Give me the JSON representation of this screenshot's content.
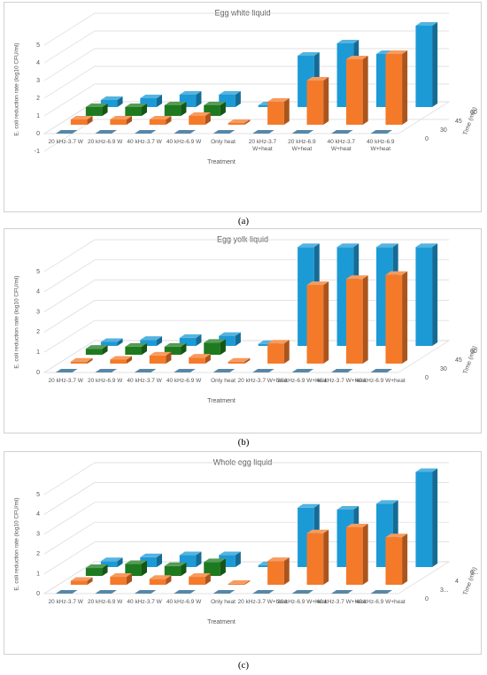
{
  "chart_data": [
    {
      "type": "bar3d",
      "title": "Egg white liquid",
      "panel_label": "(a)",
      "y_label": "E. coli reduction rate (log10 CFU/ml)",
      "x_label": "Treatment",
      "z_label": "Time (min)",
      "categories": [
        "20 kHz-3.7 W",
        "20 kHz-6.9 W",
        "40 kHz-3.7 W",
        "40 kHz-6.9 W",
        "Only heat",
        "20 kHz-3.7 W+heat",
        "20 kHz-6.9 W+heat",
        "40 kHz-3.7 W+heat",
        "40 kHz-6.9 W+heat"
      ],
      "series": [
        {
          "name": "0",
          "color": "#1f5f8b",
          "values": [
            0,
            0,
            0,
            0,
            0,
            0,
            0,
            0,
            0
          ]
        },
        {
          "name": "30",
          "color": "#f47a2a",
          "values": [
            0.3,
            0.3,
            0.3,
            0.5,
            0.1,
            1.3,
            2.5,
            3.7,
            4.0
          ]
        },
        {
          "name": "45",
          "color": "#1e7a1e",
          "values": [
            0.5,
            0.5,
            0.6,
            0.6,
            null,
            null,
            null,
            null,
            null
          ]
        },
        {
          "name": "60",
          "color": "#1c9ad6",
          "values": [
            0.4,
            0.5,
            0.7,
            0.7,
            0.1,
            2.9,
            3.6,
            3.0,
            4.6
          ]
        }
      ],
      "ylim": [
        -1,
        5
      ],
      "yticks": [
        -1,
        0,
        1,
        2,
        3,
        4,
        5
      ],
      "grid": true
    },
    {
      "type": "bar3d",
      "title": "Egg yolk liquid",
      "panel_label": "(b)",
      "y_label": "E. coli reduction rate (log10 CFU/ml)",
      "x_label": "Treatment",
      "z_label": "Time (min)",
      "categories": [
        "20 kHz-3.7 W",
        "20 kHz-6.9 W",
        "40 kHz-3.7 W",
        "40 kHz-6.9 W",
        "Only heat",
        "20 kHz-3.7 W+heat",
        "20 kHz-6.9 W+heat",
        "40 kHz-3.7 W+heat",
        "40 kHz-6.9 W+heat"
      ],
      "series": [
        {
          "name": "0",
          "color": "#1f5f8b",
          "values": [
            0,
            0,
            0,
            0,
            0,
            0,
            0,
            0,
            0
          ]
        },
        {
          "name": "30",
          "color": "#f47a2a",
          "values": [
            0.1,
            0.2,
            0.4,
            0.3,
            0.1,
            1.0,
            3.9,
            4.2,
            4.4
          ]
        },
        {
          "name": "45",
          "color": "#1e7a1e",
          "values": [
            0.3,
            0.4,
            0.4,
            0.6,
            null,
            null,
            null,
            null,
            null
          ]
        },
        {
          "name": "60",
          "color": "#1c9ad6",
          "values": [
            0.2,
            0.3,
            0.4,
            0.5,
            0.1,
            4.9,
            4.9,
            4.9,
            4.9
          ]
        }
      ],
      "ylim": [
        0,
        5
      ],
      "yticks": [
        0,
        1,
        2,
        3,
        4,
        5
      ],
      "grid": true
    },
    {
      "type": "bar3d",
      "title": "Whole egg liquid",
      "panel_label": "(c)",
      "y_label": "E. coli reduction rate (log10 CFU/ml)",
      "x_label": "Treatment",
      "z_label": "Time (min)",
      "categories": [
        "20 kHz-3.7 W",
        "20 kHz-6.9 W",
        "40 kHz-3.7 W",
        "40 kHz-6.9 W",
        "Only heat",
        "20 kHz-3.7 W+heat",
        "20 kHz-6.9 W+heat",
        "40 kHz-3.7 W+heat",
        "40 kHz-6.9 W+heat"
      ],
      "series": [
        {
          "name": "0",
          "color": "#1f5f8b",
          "values": [
            0,
            0,
            0,
            0,
            0,
            0,
            0,
            0,
            0
          ]
        },
        {
          "name": "3...",
          "color": "#f47a2a",
          "values": [
            0.2,
            0.4,
            0.3,
            0.4,
            0.05,
            1.2,
            2.6,
            2.9,
            2.4
          ]
        },
        {
          "name": "4",
          "color": "#1e7a1e",
          "values": [
            0.4,
            0.6,
            0.5,
            0.7,
            null,
            null,
            null,
            null,
            null
          ]
        },
        {
          "name": "6...",
          "color": "#1c9ad6",
          "values": [
            0.3,
            0.5,
            0.6,
            0.6,
            0.1,
            3.0,
            2.9,
            3.2,
            4.8
          ]
        }
      ],
      "ylim": [
        0,
        5
      ],
      "yticks": [
        0,
        1,
        2,
        3,
        4,
        5
      ],
      "grid": true
    }
  ]
}
